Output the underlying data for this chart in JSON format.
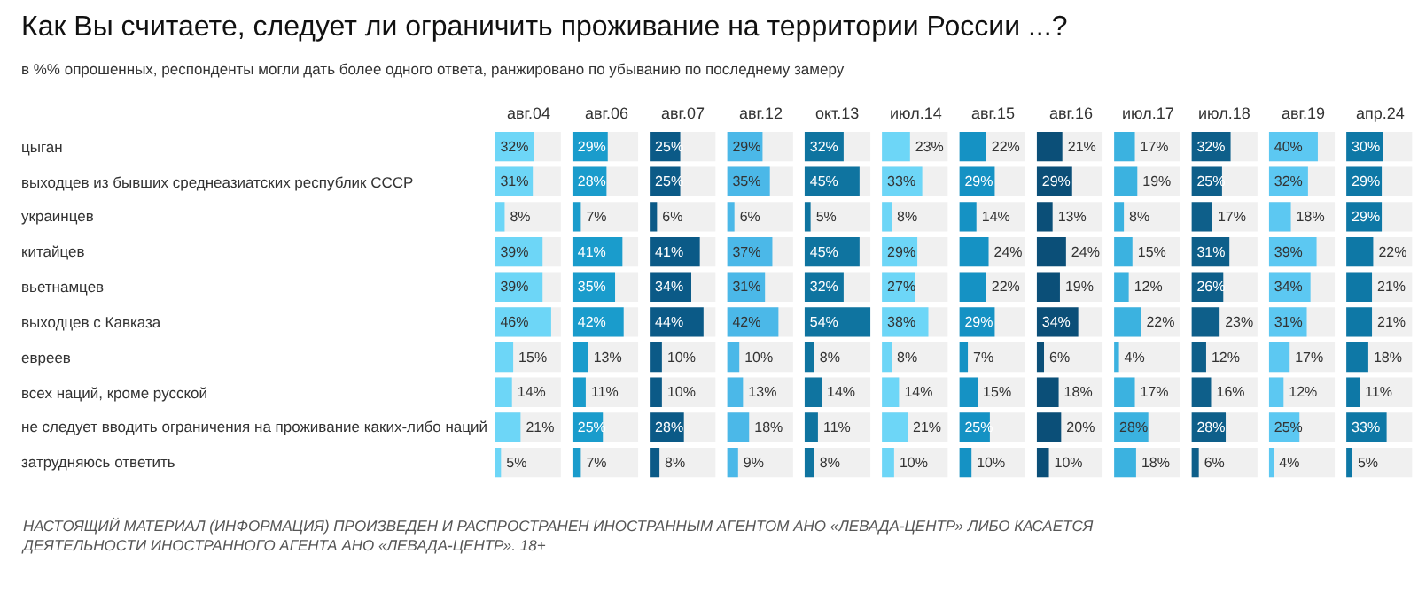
{
  "chart_data": [
    {
      "type": "other",
      "title": "Как Вы считаете, следует ли ограничить проживание на территории России ...?",
      "subtitle": "в %% опрошенных, респонденты могли дать более одного ответа, ранжировано по убыванию по последнему замеру",
      "annotations": [
        "НАСТОЯЩИЙ МАТЕРИАЛ (ИНФОРМАЦИЯ) ПРОИЗВЕДЕН И РАСПРОСТРАНЕН ИНОСТРАННЫМ АГЕНТОМ АНО «ЛЕВАДА-ЦЕНТР» ЛИБО КАСАЕТСЯ ДЕЯТЕЛЬНОСТИ ИНОСТРАННОГО АГЕНТА АНО «ЛЕВАДА-ЦЕНТР». 18+"
      ]
    },
    {
      "type": "bar",
      "orientation": "horizontal",
      "title": "авг.04",
      "categories": [
        "цыган",
        "выходцев из бывших среднеазиатских республик СССР",
        "украинцев",
        "китайцев",
        "вьетнамцев",
        "выходцев с Кавказа",
        "евреев",
        "всех наций, кроме русской",
        "не следует вводить ограничения на проживание каких-либо наций",
        "затрудняюсь ответить"
      ],
      "values": [
        32,
        31,
        8,
        39,
        39,
        46,
        15,
        14,
        21,
        5
      ],
      "value_labels": [
        "32%",
        "31%",
        "8%",
        "39%",
        "39%",
        "46%",
        "15%",
        "14%",
        "21%",
        "5%"
      ],
      "color": "#6dd6f7",
      "xlim": [
        0,
        54
      ],
      "tick_labels": "y"
    },
    {
      "type": "bar",
      "orientation": "horizontal",
      "title": "авг.06",
      "categories": [
        "цыган",
        "выходцев из бывших среднеазиатских республик СССР",
        "украинцев",
        "китайцев",
        "вьетнамцев",
        "выходцев с Кавказа",
        "евреев",
        "всех наций, кроме русской",
        "не следует вводить ограничения на проживание каких-либо наций",
        "затрудняюсь ответить"
      ],
      "values": [
        29,
        28,
        7,
        41,
        35,
        42,
        13,
        11,
        25,
        7
      ],
      "value_labels": [
        "29%",
        "28%",
        "7%",
        "41%",
        "35%",
        "42%",
        "13%",
        "11%",
        "25%",
        "7%"
      ],
      "color": "#1a9ccc",
      "xlim": [
        0,
        54
      ],
      "tick_labels": false
    },
    {
      "type": "bar",
      "orientation": "horizontal",
      "title": "авг.07",
      "categories": [
        "цыган",
        "выходцев из бывших среднеазиатских республик СССР",
        "украинцев",
        "китайцев",
        "вьетнамцев",
        "выходцев с Кавказа",
        "евреев",
        "всех наций, кроме русской",
        "не следует вводить ограничения на проживание каких-либо наций",
        "затрудняюсь ответить"
      ],
      "values": [
        25,
        25,
        6,
        41,
        34,
        44,
        10,
        10,
        28,
        8
      ],
      "value_labels": [
        "25%",
        "25%",
        "6%",
        "41%",
        "34%",
        "44%",
        "10%",
        "10%",
        "28%",
        "8%"
      ],
      "color": "#0b5a87",
      "xlim": [
        0,
        54
      ],
      "tick_labels": false
    },
    {
      "type": "bar",
      "orientation": "horizontal",
      "title": "авг.12",
      "categories": [
        "цыган",
        "выходцев из бывших среднеазиатских республик СССР",
        "украинцев",
        "китайцев",
        "вьетнамцев",
        "выходцев с Кавказа",
        "евреев",
        "всех наций, кроме русской",
        "не следует вводить ограничения на проживание каких-либо наций",
        "затрудняюсь ответить"
      ],
      "values": [
        29,
        35,
        6,
        37,
        31,
        42,
        10,
        13,
        18,
        9
      ],
      "value_labels": [
        "29%",
        "35%",
        "6%",
        "37%",
        "31%",
        "42%",
        "10%",
        "13%",
        "18%",
        "9%"
      ],
      "color": "#4bb8e8",
      "xlim": [
        0,
        54
      ],
      "tick_labels": false
    },
    {
      "type": "bar",
      "orientation": "horizontal",
      "title": "окт.13",
      "categories": [
        "цыган",
        "выходцев из бывших среднеазиатских республик СССР",
        "украинцев",
        "китайцев",
        "вьетнамцев",
        "выходцев с Кавказа",
        "евреев",
        "всех наций, кроме русской",
        "не следует вводить ограничения на проживание каких-либо наций",
        "затрудняюсь ответить"
      ],
      "values": [
        32,
        45,
        5,
        45,
        32,
        54,
        8,
        14,
        11,
        8
      ],
      "value_labels": [
        "32%",
        "45%",
        "5%",
        "45%",
        "32%",
        "54%",
        "8%",
        "14%",
        "11%",
        "8%"
      ],
      "color": "#0f74a0",
      "xlim": [
        0,
        54
      ],
      "tick_labels": false
    },
    {
      "type": "bar",
      "orientation": "horizontal",
      "title": "июл.14",
      "categories": [
        "цыган",
        "выходцев из бывших среднеазиатских республик СССР",
        "украинцев",
        "китайцев",
        "вьетнамцев",
        "выходцев с Кавказа",
        "евреев",
        "всех наций, кроме русской",
        "не следует вводить ограничения на проживание каких-либо наций",
        "затрудняюсь ответить"
      ],
      "values": [
        23,
        33,
        8,
        29,
        27,
        38,
        8,
        14,
        21,
        10
      ],
      "value_labels": [
        "23%",
        "33%",
        "8%",
        "29%",
        "27%",
        "38%",
        "8%",
        "14%",
        "21%",
        "10%"
      ],
      "color": "#6dd6f7",
      "xlim": [
        0,
        54
      ],
      "tick_labels": false
    },
    {
      "type": "bar",
      "orientation": "horizontal",
      "title": "авг.15",
      "categories": [
        "цыган",
        "выходцев из бывших среднеазиатских республик СССР",
        "украинцев",
        "китайцев",
        "вьетнамцев",
        "выходцев с Кавказа",
        "евреев",
        "всех наций, кроме русской",
        "не следует вводить ограничения на проживание каких-либо наций",
        "затрудняюсь ответить"
      ],
      "values": [
        22,
        29,
        14,
        24,
        22,
        29,
        7,
        15,
        25,
        10
      ],
      "value_labels": [
        "22%",
        "29%",
        "14%",
        "24%",
        "22%",
        "29%",
        "7%",
        "15%",
        "25%",
        "10%"
      ],
      "color": "#1592c4",
      "xlim": [
        0,
        54
      ],
      "tick_labels": false
    },
    {
      "type": "bar",
      "orientation": "horizontal",
      "title": "авг.16",
      "categories": [
        "цыган",
        "выходцев из бывших среднеазиатских республик СССР",
        "украинцев",
        "китайцев",
        "вьетнамцев",
        "выходцев с Кавказа",
        "евреев",
        "всех наций, кроме русской",
        "не следует вводить ограничения на проживание каких-либо наций",
        "затрудняюсь ответить"
      ],
      "values": [
        21,
        29,
        13,
        24,
        19,
        34,
        6,
        18,
        20,
        10
      ],
      "value_labels": [
        "21%",
        "29%",
        "13%",
        "24%",
        "19%",
        "34%",
        "6%",
        "18%",
        "20%",
        "10%"
      ],
      "color": "#0b4f78",
      "xlim": [
        0,
        54
      ],
      "tick_labels": false
    },
    {
      "type": "bar",
      "orientation": "horizontal",
      "title": "июл.17",
      "categories": [
        "цыган",
        "выходцев из бывших среднеазиатских республик СССР",
        "украинцев",
        "китайцев",
        "вьетнамцев",
        "выходцев с Кавказа",
        "евреев",
        "всех наций, кроме русской",
        "не следует вводить ограничения на проживание каких-либо наций",
        "затрудняюсь ответить"
      ],
      "values": [
        17,
        19,
        8,
        15,
        12,
        22,
        4,
        17,
        28,
        18
      ],
      "value_labels": [
        "17%",
        "19%",
        "8%",
        "15%",
        "12%",
        "22%",
        "4%",
        "17%",
        "28%",
        "18%"
      ],
      "color": "#3bb2e0",
      "xlim": [
        0,
        54
      ],
      "tick_labels": false
    },
    {
      "type": "bar",
      "orientation": "horizontal",
      "title": "июл.18",
      "categories": [
        "цыган",
        "выходцев из бывших среднеазиатских республик СССР",
        "украинцев",
        "китайцев",
        "вьетнамцев",
        "выходцев с Кавказа",
        "евреев",
        "всех наций, кроме русской",
        "не следует вводить ограничения на проживание каких-либо наций",
        "затрудняюсь ответить"
      ],
      "values": [
        32,
        25,
        17,
        31,
        26,
        23,
        12,
        16,
        28,
        6
      ],
      "value_labels": [
        "32%",
        "25%",
        "17%",
        "31%",
        "26%",
        "23%",
        "12%",
        "16%",
        "28%",
        "6%"
      ],
      "color": "#0e5f8a",
      "xlim": [
        0,
        54
      ],
      "tick_labels": false
    },
    {
      "type": "bar",
      "orientation": "horizontal",
      "title": "авг.19",
      "categories": [
        "цыган",
        "выходцев из бывших среднеазиатских республик СССР",
        "украинцев",
        "китайцев",
        "вьетнамцев",
        "выходцев с Кавказа",
        "евреев",
        "всех наций, кроме русской",
        "не следует вводить ограничения на проживание каких-либо наций",
        "затрудняюсь ответить"
      ],
      "values": [
        40,
        32,
        18,
        39,
        34,
        31,
        17,
        12,
        25,
        4
      ],
      "value_labels": [
        "40%",
        "32%",
        "18%",
        "39%",
        "34%",
        "31%",
        "17%",
        "12%",
        "25%",
        "4%"
      ],
      "color": "#5cc8f2",
      "xlim": [
        0,
        54
      ],
      "tick_labels": false
    },
    {
      "type": "bar",
      "orientation": "horizontal",
      "title": "апр.24",
      "categories": [
        "цыган",
        "выходцев из бывших среднеазиатских республик СССР",
        "украинцев",
        "китайцев",
        "вьетнамцев",
        "выходцев с Кавказа",
        "евреев",
        "всех наций, кроме русской",
        "не следует вводить ограничения на проживание каких-либо наций",
        "затрудняюсь ответить"
      ],
      "values": [
        30,
        29,
        29,
        22,
        21,
        21,
        18,
        11,
        33,
        5
      ],
      "value_labels": [
        "30%",
        "29%",
        "29%",
        "22%",
        "21%",
        "21%",
        "18%",
        "11%",
        "33%",
        "5%"
      ],
      "color": "#0e78a6",
      "xlim": [
        0,
        54
      ],
      "tick_labels": false
    }
  ]
}
